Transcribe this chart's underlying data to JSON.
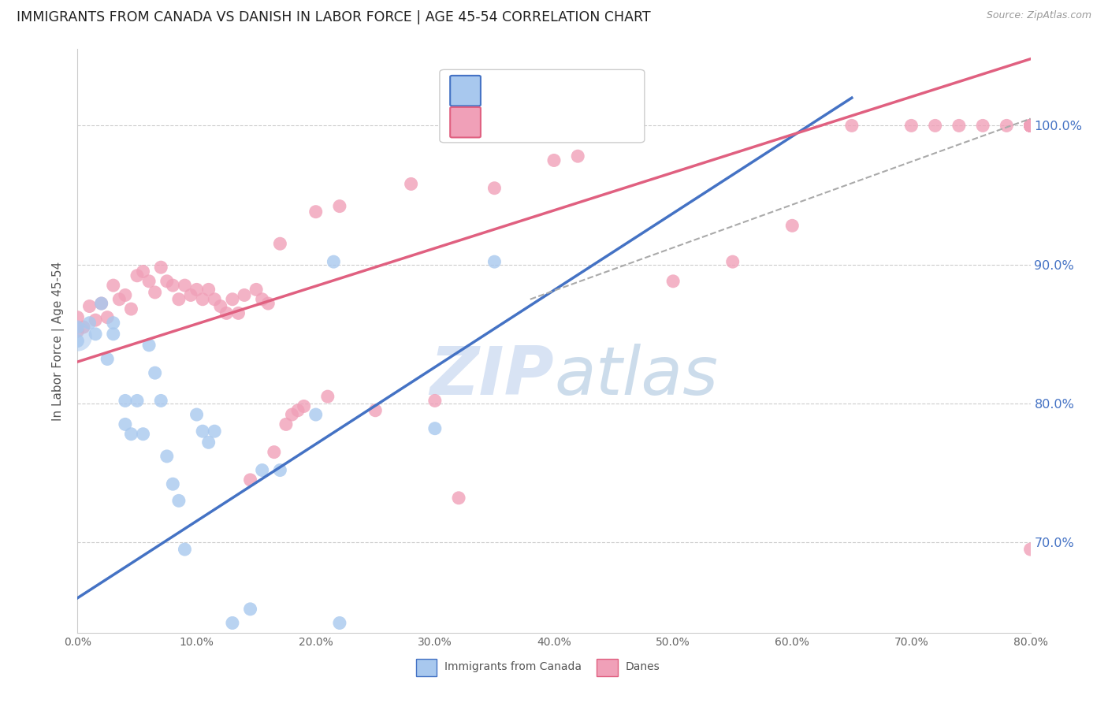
{
  "title": "IMMIGRANTS FROM CANADA VS DANISH IN LABOR FORCE | AGE 45-54 CORRELATION CHART",
  "source": "Source: ZipAtlas.com",
  "ylabel": "In Labor Force | Age 45-54",
  "xmin": 0.0,
  "xmax": 0.8,
  "ymin": 0.635,
  "ymax": 1.055,
  "blue_color": "#A8C8EE",
  "pink_color": "#F0A0B8",
  "blue_line_color": "#4472C4",
  "pink_line_color": "#E06080",
  "dashed_line_color": "#AAAAAA",
  "right_tick_color": "#4472C4",
  "grid_color": "#CCCCCC",
  "watermark_zip": "ZIP",
  "watermark_atlas": "atlas",
  "watermark_color_zip": "#C8D8F0",
  "watermark_color_atlas": "#A0B8D8",
  "title_fontsize": 12.5,
  "tick_fontsize": 10,
  "legend_fontsize": 13,
  "canada_x": [
    0.0,
    0.0,
    0.01,
    0.015,
    0.02,
    0.025,
    0.03,
    0.03,
    0.04,
    0.04,
    0.045,
    0.05,
    0.055,
    0.06,
    0.065,
    0.07,
    0.075,
    0.08,
    0.085,
    0.09,
    0.1,
    0.105,
    0.11,
    0.115,
    0.13,
    0.145,
    0.155,
    0.17,
    0.2,
    0.215,
    0.22,
    0.3,
    0.35
  ],
  "canada_y": [
    0.855,
    0.845,
    0.858,
    0.85,
    0.872,
    0.832,
    0.858,
    0.85,
    0.802,
    0.785,
    0.778,
    0.802,
    0.778,
    0.842,
    0.822,
    0.802,
    0.762,
    0.742,
    0.73,
    0.695,
    0.792,
    0.78,
    0.772,
    0.78,
    0.642,
    0.652,
    0.752,
    0.752,
    0.792,
    0.902,
    0.642,
    0.782,
    0.902
  ],
  "canada_big_x": [
    0.0
  ],
  "canada_big_y": [
    0.848
  ],
  "danes_x": [
    0.0,
    0.0,
    0.005,
    0.01,
    0.015,
    0.02,
    0.025,
    0.03,
    0.035,
    0.04,
    0.045,
    0.05,
    0.055,
    0.06,
    0.065,
    0.07,
    0.075,
    0.08,
    0.085,
    0.09,
    0.095,
    0.1,
    0.105,
    0.11,
    0.115,
    0.12,
    0.125,
    0.13,
    0.135,
    0.14,
    0.145,
    0.15,
    0.155,
    0.16,
    0.165,
    0.17,
    0.175,
    0.18,
    0.185,
    0.19,
    0.2,
    0.21,
    0.22,
    0.25,
    0.28,
    0.3,
    0.32,
    0.35,
    0.4,
    0.42,
    0.5,
    0.55,
    0.6,
    0.65,
    0.7,
    0.72,
    0.74,
    0.76,
    0.78,
    0.8,
    0.8,
    0.8,
    0.8,
    0.8,
    0.8,
    0.8,
    0.8,
    0.8,
    0.8,
    0.8,
    0.8,
    0.8,
    0.8
  ],
  "danes_y": [
    0.862,
    0.852,
    0.855,
    0.87,
    0.86,
    0.872,
    0.862,
    0.885,
    0.875,
    0.878,
    0.868,
    0.892,
    0.895,
    0.888,
    0.88,
    0.898,
    0.888,
    0.885,
    0.875,
    0.885,
    0.878,
    0.882,
    0.875,
    0.882,
    0.875,
    0.87,
    0.865,
    0.875,
    0.865,
    0.878,
    0.745,
    0.882,
    0.875,
    0.872,
    0.765,
    0.915,
    0.785,
    0.792,
    0.795,
    0.798,
    0.938,
    0.805,
    0.942,
    0.795,
    0.958,
    0.802,
    0.732,
    0.955,
    0.975,
    0.978,
    0.888,
    0.902,
    0.928,
    1.0,
    1.0,
    1.0,
    1.0,
    1.0,
    1.0,
    1.0,
    1.0,
    1.0,
    1.0,
    1.0,
    1.0,
    1.0,
    1.0,
    1.0,
    1.0,
    1.0,
    1.0,
    1.0,
    0.695
  ],
  "blue_line_x0": 0.0,
  "blue_line_y0": 0.66,
  "blue_line_x1": 0.65,
  "blue_line_y1": 1.02,
  "pink_line_x0": 0.0,
  "pink_line_y0": 0.83,
  "pink_line_x1": 0.8,
  "pink_line_y1": 1.048,
  "dash_line_x0": 0.38,
  "dash_line_y0": 0.875,
  "dash_line_x1": 0.8,
  "dash_line_y1": 1.005,
  "ytick_vals": [
    0.7,
    0.8,
    0.9,
    1.0
  ],
  "ytick_labels": [
    "70.0%",
    "80.0%",
    "90.0%",
    "100.0%"
  ],
  "xtick_vals": [
    0.0,
    0.1,
    0.2,
    0.3,
    0.4,
    0.5,
    0.6,
    0.7,
    0.8
  ],
  "xtick_labels": [
    "0.0%",
    "10.0%",
    "20.0%",
    "30.0%",
    "40.0%",
    "50.0%",
    "60.0%",
    "70.0%",
    "80.0%"
  ]
}
